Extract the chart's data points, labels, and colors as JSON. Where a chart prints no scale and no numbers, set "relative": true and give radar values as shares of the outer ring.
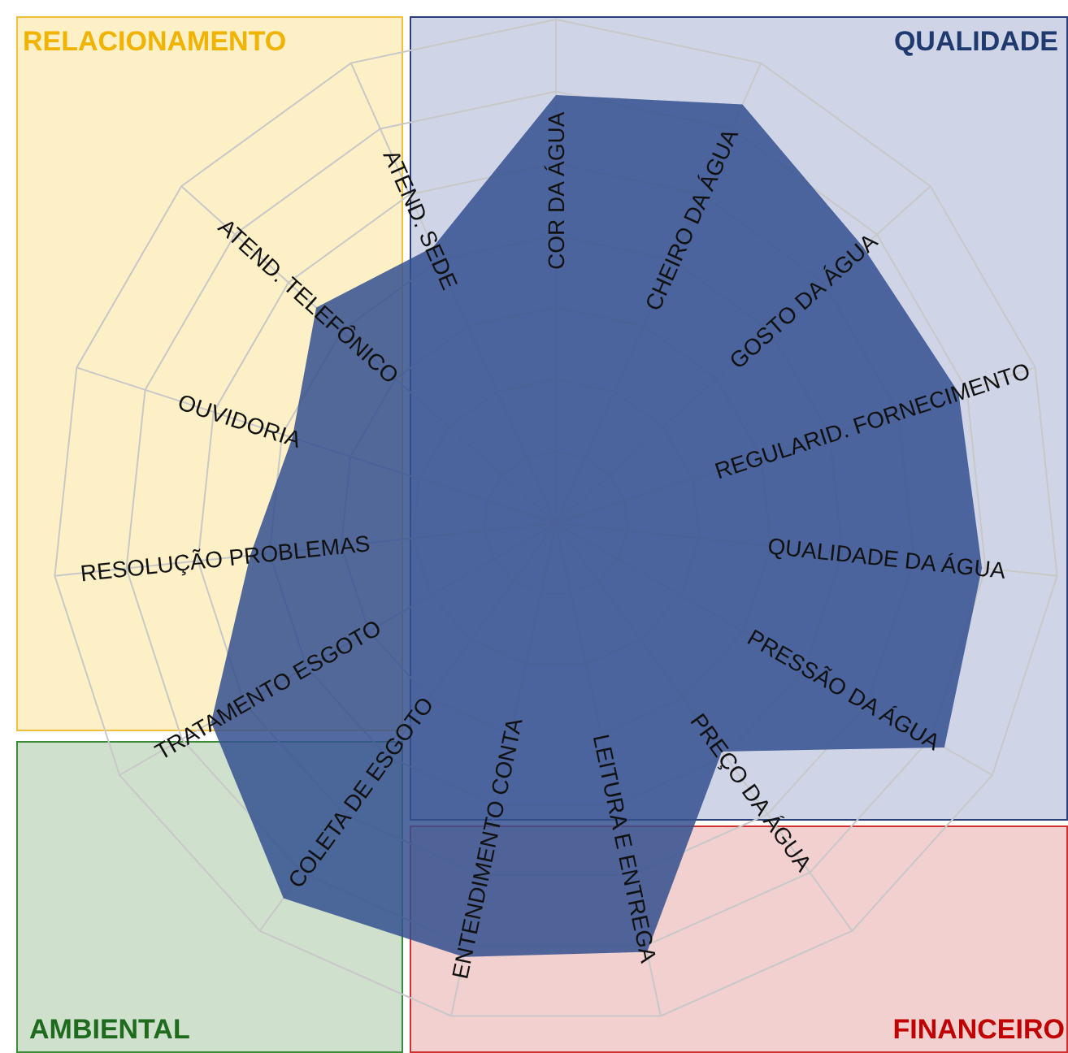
{
  "chart_data": {
    "type": "radar",
    "relative": true,
    "grid": true,
    "categories": [
      "COR DA ÁGUA",
      "CHEIRO DA ÁGUA",
      "GOSTO DA ÁGUA",
      "REGULARID. FORNECIMENTO",
      "QUALIDADE DA ÁGUA",
      "PRESSÃO DA ÁGUA",
      "PREÇO DA ÁGUA",
      "LEITURA E ENTREGA",
      "ENTENDIMENTO CONTA",
      "COLETA DE ESGOTO",
      "TRATAMENTO ESGOTO",
      "RESOLUÇÃO PROBLEMAS",
      "OUVIDORIA",
      "ATEND. TELEFÔNICO",
      "ATEND. SEDE"
    ],
    "series": [
      {
        "color": "#34508f",
        "values": [
          0.85,
          0.91,
          0.82,
          0.84,
          0.85,
          0.89,
          0.56,
          0.87,
          0.88,
          0.92,
          0.79,
          0.61,
          0.55,
          0.64,
          0.6
        ]
      }
    ],
    "annotations": [
      "RELACIONAMENTO",
      "QUALIDADE",
      "AMBIENTAL",
      "FINANCEIRO"
    ]
  }
}
